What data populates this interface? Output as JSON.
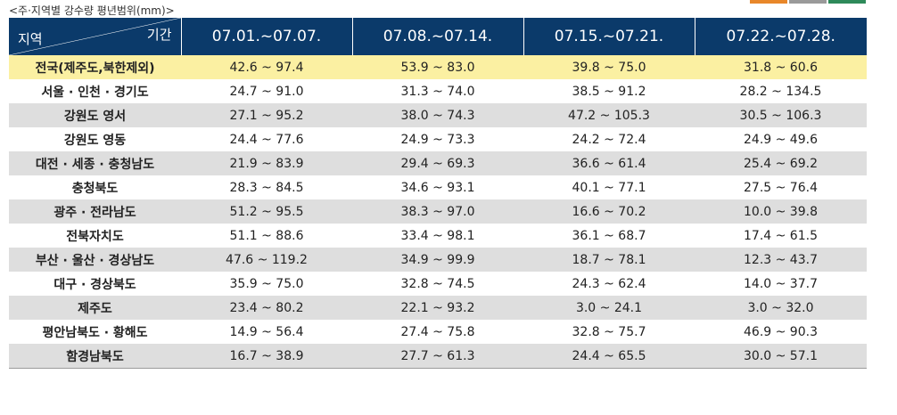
{
  "caption": "<주·지역별 강수량 평년범위(mm)>",
  "tab_colors": [
    "#e8872a",
    "#9a9a9a",
    "#2e8a5a"
  ],
  "header": {
    "row_label": "지역",
    "col_label": "기간",
    "periods": [
      "07.01.~07.07.",
      "07.08.~07.14.",
      "07.15.~07.21.",
      "07.22.~07.28."
    ]
  },
  "rows": [
    {
      "region": "전국(제주도,북한제외)",
      "values": [
        "42.6 ~ 97.4",
        "53.9 ~ 83.0",
        "39.8 ~ 75.0",
        "31.8 ~ 60.6"
      ]
    },
    {
      "region": "서울 · 인천 · 경기도",
      "values": [
        "24.7 ~ 91.0",
        "31.3 ~ 74.0",
        "38.5 ~ 91.2",
        "28.2 ~ 134.5"
      ]
    },
    {
      "region": "강원도 영서",
      "values": [
        "27.1 ~ 95.2",
        "38.0 ~ 74.3",
        "47.2 ~ 105.3",
        "30.5 ~ 106.3"
      ]
    },
    {
      "region": "강원도 영동",
      "values": [
        "24.4 ~ 77.6",
        "24.9 ~ 73.3",
        "24.2 ~ 72.4",
        "24.9 ~ 49.6"
      ]
    },
    {
      "region": "대전 · 세종 · 충청남도",
      "values": [
        "21.9 ~ 83.9",
        "29.4 ~ 69.3",
        "36.6 ~ 61.4",
        "25.4 ~ 69.2"
      ]
    },
    {
      "region": "충청북도",
      "values": [
        "28.3 ~ 84.5",
        "34.6 ~ 93.1",
        "40.1 ~ 77.1",
        "27.5 ~ 76.4"
      ]
    },
    {
      "region": "광주 · 전라남도",
      "values": [
        "51.2 ~ 95.5",
        "38.3 ~ 97.0",
        "16.6 ~ 70.2",
        "10.0 ~ 39.8"
      ]
    },
    {
      "region": "전북자치도",
      "values": [
        "51.1 ~ 88.6",
        "33.4 ~ 98.1",
        "36.1 ~ 68.7",
        "17.4 ~ 61.5"
      ]
    },
    {
      "region": "부산 · 울산 · 경상남도",
      "values": [
        "47.6 ~ 119.2",
        "34.9 ~ 99.9",
        "18.7 ~ 78.1",
        "12.3 ~ 43.7"
      ]
    },
    {
      "region": "대구 · 경상북도",
      "values": [
        "35.9 ~ 75.0",
        "32.8 ~ 74.5",
        "24.3 ~ 62.4",
        "14.0 ~ 37.7"
      ]
    },
    {
      "region": "제주도",
      "values": [
        "23.4 ~ 80.2",
        "22.1 ~ 93.2",
        "3.0 ~ 24.1",
        "3.0 ~ 32.0"
      ]
    },
    {
      "region": "평안남북도 · 황해도",
      "values": [
        "14.9 ~ 56.4",
        "27.4 ~ 75.8",
        "32.8 ~ 75.7",
        "46.9 ~ 90.3"
      ]
    },
    {
      "region": "함경남북도",
      "values": [
        "16.7 ~ 38.9",
        "27.7 ~ 61.3",
        "24.4 ~ 65.5",
        "30.0 ~ 57.1"
      ]
    }
  ]
}
